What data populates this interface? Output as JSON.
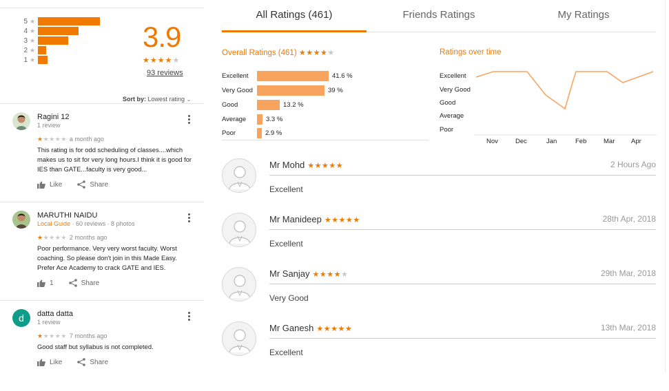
{
  "summary": {
    "distribution": [
      {
        "label": "5",
        "fraction": 1.0
      },
      {
        "label": "4",
        "fraction": 0.65
      },
      {
        "label": "3",
        "fraction": 0.49
      },
      {
        "label": "2",
        "fraction": 0.13
      },
      {
        "label": "1",
        "fraction": 0.16
      }
    ],
    "score": "3.9",
    "stars_filled": 4,
    "reviews_link": "93 reviews",
    "sort_label": "Sort by:",
    "sort_value": "Lowest rating",
    "star_color": "#f07a00"
  },
  "reviews": [
    {
      "name": "Ragini 12",
      "meta": "1 review",
      "guide": "",
      "stars": 1,
      "time": "a month ago",
      "text": "This rating is for odd scheduling of classes....which makes us to sit for very long hours.I think it is good for IES than GATE...faculty is very good...",
      "like_label": "Like",
      "share_label": "Share",
      "avatar_icon": "photo-avatar-icon"
    },
    {
      "name": "MARUTHI NAIDU",
      "meta": " · 60 reviews · 8 photos",
      "guide": "Local Guide",
      "stars": 1,
      "time": "2 months ago",
      "text": "Poor performance. Very very worst faculty. Worst coaching. So please don't join in this Made Easy. Prefer Ace Academy to crack GATE and IES.",
      "like_label": "1",
      "share_label": "Share",
      "avatar_icon": "photo-avatar-icon"
    },
    {
      "name": "datta datta",
      "meta": "1 review",
      "guide": "",
      "stars": 1,
      "time": "7 months ago",
      "text": "Good staff but syllabus is not completed.",
      "like_label": "Like",
      "share_label": "Share",
      "avatar_letter": "d",
      "avatar_color": "#0f9d8a"
    }
  ],
  "tabs": [
    {
      "label": "All Ratings (461)",
      "active": true
    },
    {
      "label": "Friends Ratings",
      "active": false
    },
    {
      "label": "My Ratings",
      "active": false
    }
  ],
  "overall": {
    "title": "Overall Ratings (461)",
    "stars_filled": 4
  },
  "over_time_title": "Ratings over time",
  "chart_data": [
    {
      "type": "bar",
      "orientation": "horizontal",
      "categories": [
        "Excellent",
        "Very Good",
        "Good",
        "Average",
        "Poor"
      ],
      "values": [
        41.6,
        39,
        13.2,
        3.3,
        2.9
      ],
      "value_labels": [
        "41.6 %",
        "39 %",
        "13.2 %",
        "3.3 %",
        "2.9 %"
      ],
      "xlim": [
        0,
        41.6
      ],
      "color": "#f9a45e",
      "grid": false
    },
    {
      "type": "line",
      "y_categories": [
        "Excellent",
        "Very Good",
        "Good",
        "Average",
        "Poor"
      ],
      "x_ticks": [
        "Nov",
        "Dec",
        "Jan",
        "Feb",
        "Mar",
        "Apr"
      ],
      "points": [
        {
          "x": "Nov",
          "y": "Very Good"
        },
        {
          "x": "Nov",
          "y": "Excellent"
        },
        {
          "x": "Dec",
          "y": "Excellent"
        },
        {
          "x": "Jan",
          "y": "Very Good"
        },
        {
          "x": "Jan",
          "y": "Good"
        },
        {
          "x": "Feb",
          "y": "Very Good"
        },
        {
          "x": "Feb",
          "y": "Excellent"
        },
        {
          "x": "Mar",
          "y": "Excellent"
        },
        {
          "x": "Mar",
          "y": "Very Good"
        },
        {
          "x": "Apr",
          "y": "Excellent"
        }
      ],
      "color": "#f9a45e",
      "grid": false
    }
  ],
  "users": [
    {
      "name": "Mr Mohd",
      "stars": 5,
      "date": "2 Hours Ago",
      "rating": "Excellent"
    },
    {
      "name": "Mr Manideep",
      "stars": 5,
      "date": "28th Apr, 2018",
      "rating": "Excellent"
    },
    {
      "name": "Mr Sanjay",
      "stars": 4,
      "date": "29th Mar, 2018",
      "rating": "Very Good"
    },
    {
      "name": "Mr Ganesh",
      "stars": 5,
      "date": "13th Mar, 2018",
      "rating": "Excellent"
    }
  ]
}
